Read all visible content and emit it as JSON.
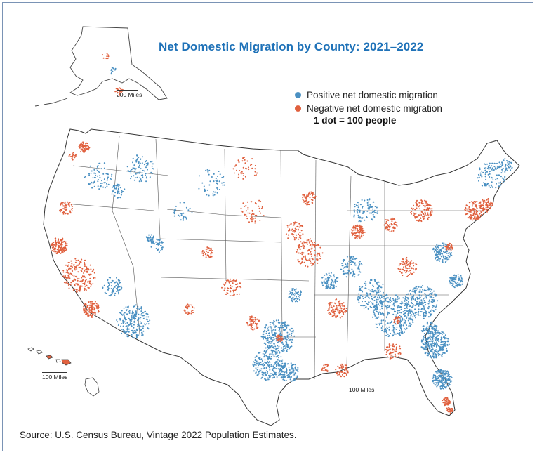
{
  "title": "Net Domestic Migration by County: 2021–2022",
  "legend": {
    "positive_label": "Positive net domestic migration",
    "negative_label": "Negative net domestic migration",
    "scale_label": "1 dot = 100 people",
    "positive_color": "#4a90c2",
    "negative_color": "#e0603e"
  },
  "scalebars": {
    "alaska": "200 Miles",
    "hawaii": "100 Miles",
    "conus": "100 Miles"
  },
  "source": "Source: U.S. Census Bureau, Vintage 2022 Population Estimates."
}
